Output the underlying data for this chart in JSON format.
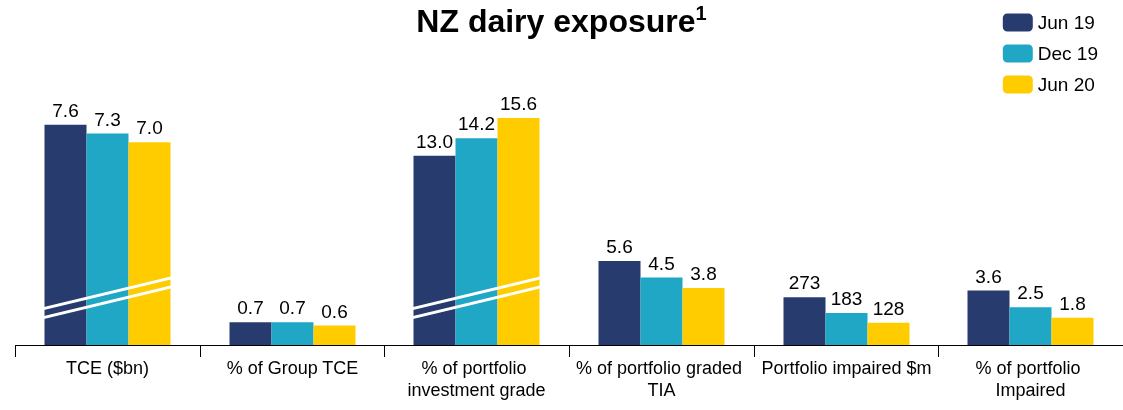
{
  "chart_data": [
    {
      "type": "bar",
      "categories": [
        "TCE ($bn)"
      ],
      "tick_labels": "x",
      "series": [
        {
          "color": "#283b6e",
          "values": [
            7.6
          ],
          "value_labels": [
            "7.6"
          ]
        },
        {
          "color": "#21a7c6",
          "values": [
            7.3
          ],
          "value_labels": [
            "7.3"
          ]
        },
        {
          "color": "#ffcc00",
          "values": [
            7.0
          ],
          "value_labels": [
            "7.0"
          ]
        }
      ]
    },
    {
      "type": "bar",
      "categories": [
        "% of Group TCE"
      ],
      "tick_labels": "x",
      "series": [
        {
          "color": "#283b6e",
          "values": [
            0.7
          ],
          "value_labels": [
            "0.7"
          ]
        },
        {
          "color": "#21a7c6",
          "values": [
            0.7
          ],
          "value_labels": [
            "0.7"
          ]
        },
        {
          "color": "#ffcc00",
          "values": [
            0.6
          ],
          "value_labels": [
            "0.6"
          ]
        }
      ]
    },
    {
      "type": "bar",
      "title": "NZ dairy exposure$^{1}$",
      "categories": [
        "% of portfolio investment grade"
      ],
      "tick_labels": "x",
      "series": [
        {
          "color": "#283b6e",
          "values": [
            13.0
          ],
          "value_labels": [
            "13.0"
          ]
        },
        {
          "color": "#21a7c6",
          "values": [
            14.2
          ],
          "value_labels": [
            "14.2"
          ]
        },
        {
          "color": "#ffcc00",
          "values": [
            15.6
          ],
          "value_labels": [
            "15.6"
          ]
        }
      ]
    },
    {
      "type": "bar",
      "categories": [
        "% of portfolio graded TIA"
      ],
      "tick_labels": "x",
      "series": [
        {
          "color": "#283b6e",
          "values": [
            5.6
          ],
          "value_labels": [
            "5.6"
          ]
        },
        {
          "color": "#21a7c6",
          "values": [
            4.5
          ],
          "value_labels": [
            "4.5"
          ]
        },
        {
          "color": "#ffcc00",
          "values": [
            3.8
          ],
          "value_labels": [
            "3.8"
          ]
        }
      ]
    },
    {
      "type": "bar",
      "categories": [
        "Portfolio impaired $m"
      ],
      "tick_labels": "x",
      "series": [
        {
          "color": "#283b6e",
          "values": [
            273
          ],
          "value_labels": [
            "273"
          ]
        },
        {
          "color": "#21a7c6",
          "values": [
            183
          ],
          "value_labels": [
            "183"
          ]
        },
        {
          "color": "#ffcc00",
          "values": [
            128
          ],
          "value_labels": [
            "128"
          ]
        }
      ]
    },
    {
      "type": "bar",
      "categories": [
        "% of portfolio Impaired"
      ],
      "tick_labels": "x",
      "legend": "top right",
      "series": [
        {
          "name": "Jun 19",
          "color": "#283b6e",
          "values": [
            3.6
          ],
          "value_labels": [
            "3.6"
          ]
        },
        {
          "name": "Dec 19",
          "color": "#21a7c6",
          "values": [
            2.5
          ],
          "value_labels": [
            "2.5"
          ]
        },
        {
          "name": "Jun 20",
          "color": "#ffcc00",
          "values": [
            1.8
          ],
          "value_labels": [
            "1.8"
          ]
        }
      ]
    }
  ]
}
